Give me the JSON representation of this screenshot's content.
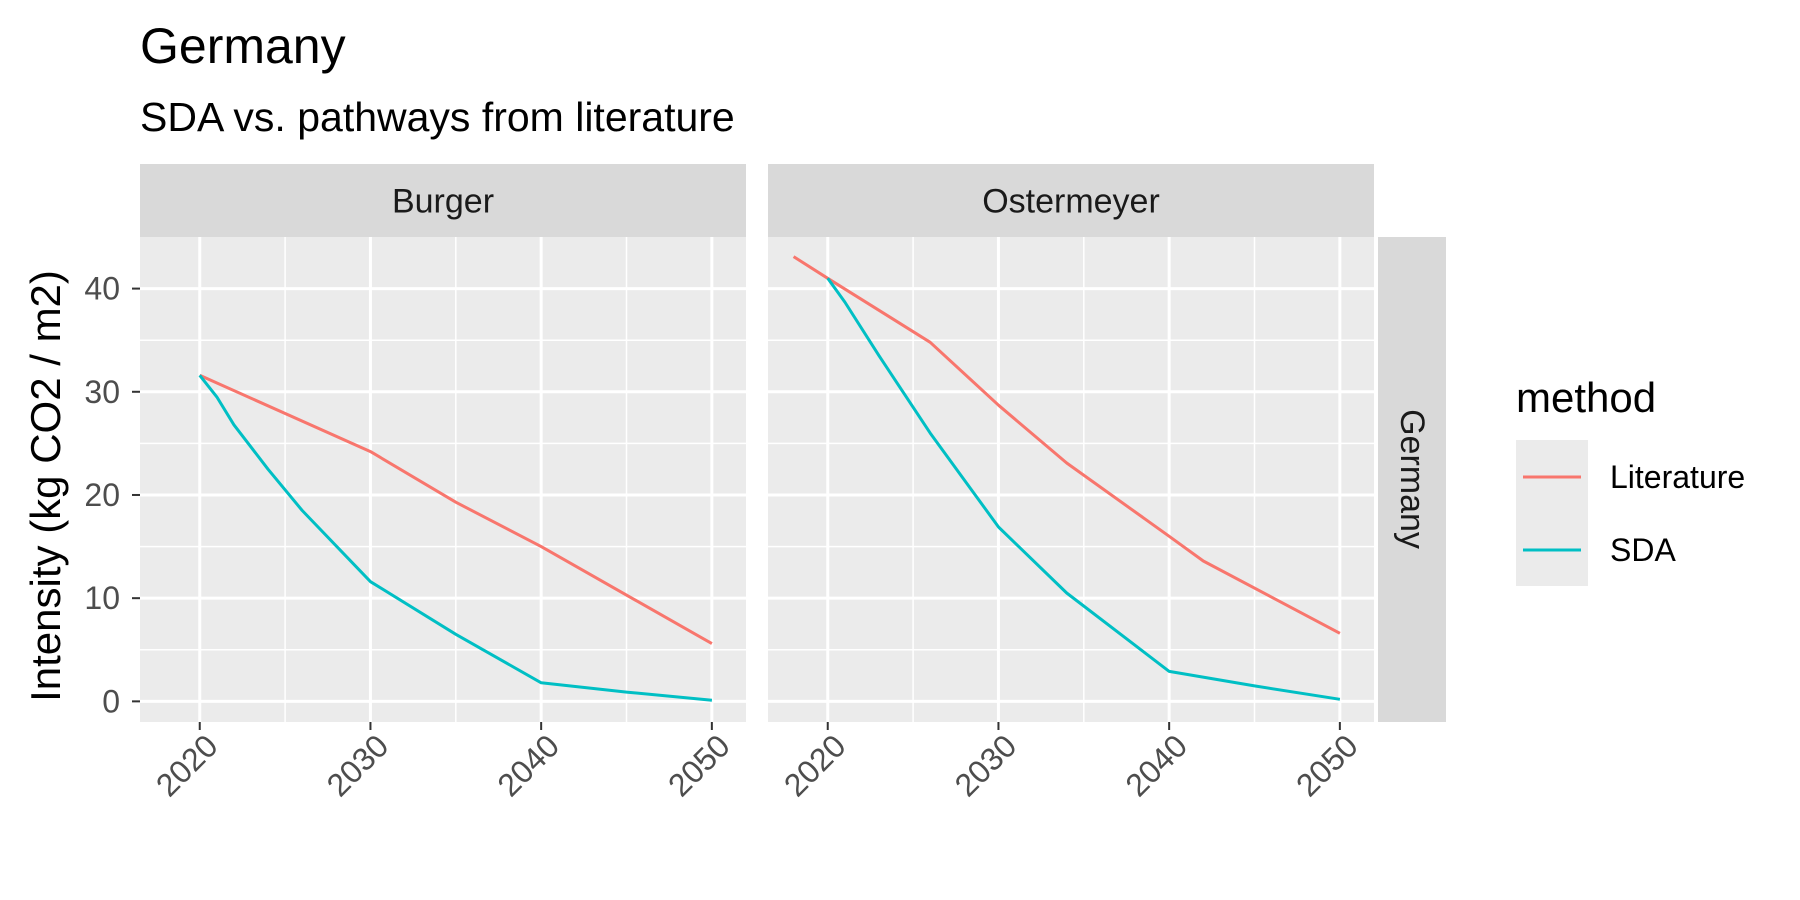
{
  "chart_data": {
    "type": "line",
    "title": "Germany",
    "subtitle": "SDA vs. pathways from literature",
    "ylabel": "Intensity (kg CO2 / m2)",
    "xlabel": "",
    "xlim": [
      2016.5,
      2052
    ],
    "ylim": [
      -2,
      45
    ],
    "x_ticks": [
      2020,
      2030,
      2040,
      2050
    ],
    "x_tick_labels": [
      "2020",
      "2030",
      "2040",
      "2050"
    ],
    "y_ticks": [
      0,
      10,
      20,
      30,
      40
    ],
    "y_tick_labels": [
      "0",
      "10",
      "20",
      "30",
      "40"
    ],
    "row_strip": "Germany",
    "grid": true,
    "legend": {
      "title": "method",
      "position": "right",
      "entries": [
        {
          "label": "Literature",
          "color": "#F8766D"
        },
        {
          "label": "SDA",
          "color": "#00BFC4"
        }
      ]
    },
    "panels": [
      {
        "strip": "Burger",
        "series": [
          {
            "name": "Literature",
            "color": "#F8766D",
            "x": [
              2020,
              2030,
              2035,
              2040,
              2050
            ],
            "y": [
              31.6,
              24.2,
              19.3,
              15.0,
              5.6
            ]
          },
          {
            "name": "SDA",
            "color": "#00BFC4",
            "x": [
              2020,
              2021,
              2022,
              2024,
              2026,
              2030,
              2035,
              2040,
              2045,
              2050
            ],
            "y": [
              31.6,
              29.5,
              26.8,
              22.5,
              18.5,
              11.6,
              6.5,
              1.8,
              0.9,
              0.1
            ]
          }
        ]
      },
      {
        "strip": "Ostermeyer",
        "series": [
          {
            "name": "Literature",
            "color": "#F8766D",
            "x": [
              2018,
              2020,
              2026,
              2030,
              2034,
              2040,
              2042,
              2050
            ],
            "y": [
              43.1,
              41.0,
              34.8,
              28.7,
              23.1,
              16.0,
              13.6,
              6.6
            ]
          },
          {
            "name": "SDA",
            "color": "#00BFC4",
            "x": [
              2020,
              2021,
              2023,
              2026,
              2030,
              2034,
              2040,
              2045,
              2050
            ],
            "y": [
              41.0,
              38.7,
              33.5,
              26.0,
              16.9,
              10.5,
              2.9,
              1.5,
              0.2
            ]
          }
        ]
      }
    ]
  }
}
